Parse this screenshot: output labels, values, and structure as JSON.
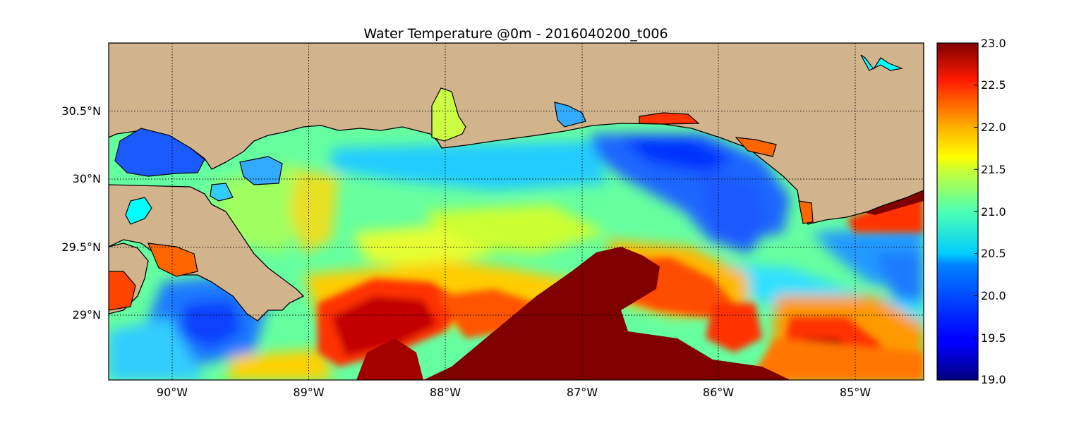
{
  "title": "Water Temperature @0m - 2016040200_t006",
  "map": {
    "lon_range": [
      -90.45,
      -84.5
    ],
    "lat_range": [
      28.55,
      31.0
    ],
    "lon_ticks": [
      {
        "value": -90,
        "label": "90°W"
      },
      {
        "value": -89,
        "label": "89°W"
      },
      {
        "value": -88,
        "label": "88°W"
      },
      {
        "value": -87,
        "label": "87°W"
      },
      {
        "value": -86,
        "label": "86°W"
      },
      {
        "value": -85,
        "label": "85°W"
      }
    ],
    "lat_ticks": [
      {
        "value": 30.5,
        "label": "30.5°N"
      },
      {
        "value": 30.0,
        "label": "30°N"
      },
      {
        "value": 29.5,
        "label": "29.5°N"
      },
      {
        "value": 29.0,
        "label": "29°N"
      }
    ],
    "grid": true,
    "land_color": "#d2b48c",
    "lake_color": "#00ffff"
  },
  "colorbar": {
    "min": 19.0,
    "max": 23.0,
    "colormap": "jet",
    "ticks": [
      {
        "value": 23.0,
        "label": "23.0"
      },
      {
        "value": 22.5,
        "label": "22.5"
      },
      {
        "value": 22.0,
        "label": "22.0"
      },
      {
        "value": 21.5,
        "label": "21.5"
      },
      {
        "value": 21.0,
        "label": "21.0"
      },
      {
        "value": 20.5,
        "label": "20.5"
      },
      {
        "value": 20.0,
        "label": "20.0"
      },
      {
        "value": 19.5,
        "label": "19.5"
      },
      {
        "value": 19.0,
        "label": "19.0"
      }
    ]
  }
}
